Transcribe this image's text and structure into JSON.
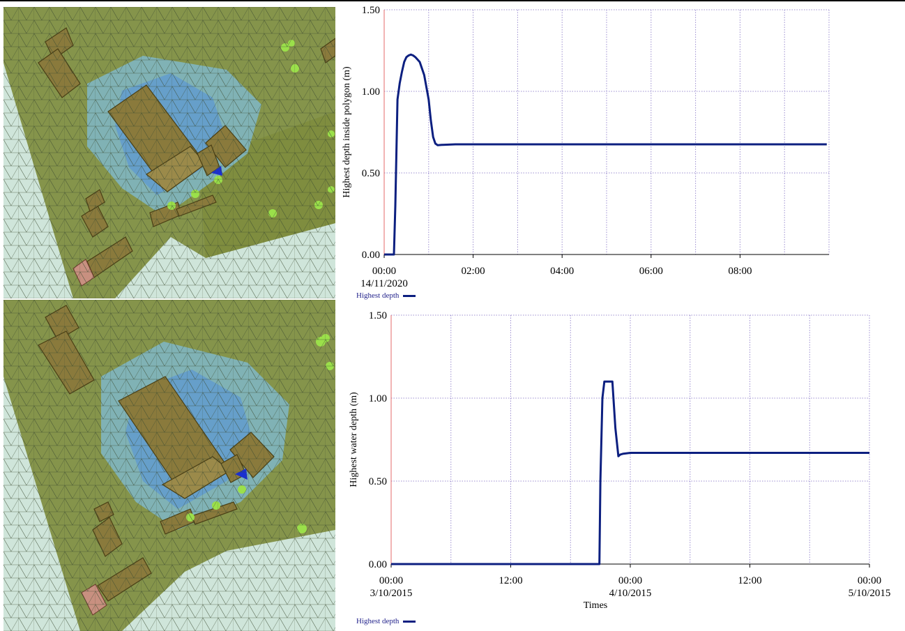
{
  "colors": {
    "line": "#0c1f80",
    "grid": "#9c8ed0",
    "axis": "#e46a6a",
    "text": "#000000",
    "legend_text": "#1f1f8a",
    "mesh_ground": "#c9e2d6",
    "mesh_green": "#7f8d3f",
    "water_shallow": "#7fb7c8",
    "water_deep": "#5f9ad0",
    "building": "#8a7a3c",
    "tree": "#9be04a"
  },
  "maps": {
    "top": {
      "description_icon": "flood-map-icon"
    },
    "bottom": {
      "description_icon": "flood-map-icon"
    }
  },
  "legend": {
    "top": "Highest depth",
    "bottom": "Highest depth"
  },
  "chart_data": [
    {
      "type": "line",
      "title": "",
      "ylabel": "Highest depth inside polygon (m)",
      "xlabel": "",
      "x_unit": "hours since 00:00 14/11/2020",
      "xlim": [
        0,
        10
      ],
      "ylim": [
        0,
        1.5
      ],
      "yticks": [
        0,
        0.5,
        1.0,
        1.5
      ],
      "ytick_labels": [
        "0.00",
        "0.50",
        "1.00",
        "1.50"
      ],
      "xticks": [
        0,
        2,
        4,
        6,
        8
      ],
      "xtick_labels": [
        "00:00",
        "02:00",
        "04:00",
        "06:00",
        "08:00"
      ],
      "xtick_sublabels": [
        "14/11/2020",
        "",
        "",
        "",
        ""
      ],
      "grid_x": [
        0,
        1,
        2,
        3,
        4,
        5,
        6,
        7,
        8,
        9,
        10
      ],
      "grid_y": [
        0.5,
        1.0,
        1.5
      ],
      "legend_position": "bottom-left",
      "series": [
        {
          "name": "Highest depth",
          "x": [
            0.0,
            0.22,
            0.25,
            0.3,
            0.35,
            0.4,
            0.45,
            0.5,
            0.55,
            0.6,
            0.65,
            0.7,
            0.8,
            0.9,
            1.0,
            1.05,
            1.1,
            1.15,
            1.2,
            1.3,
            1.6,
            2.0,
            4.0,
            6.0,
            8.0,
            9.95
          ],
          "y": [
            0.0,
            0.0,
            0.3,
            0.95,
            1.05,
            1.12,
            1.18,
            1.21,
            1.22,
            1.225,
            1.22,
            1.21,
            1.18,
            1.1,
            0.95,
            0.82,
            0.72,
            0.68,
            0.67,
            0.672,
            0.675,
            0.675,
            0.675,
            0.675,
            0.675,
            0.675
          ]
        }
      ]
    },
    {
      "type": "line",
      "title": "",
      "ylabel": "Highest water depth (m)",
      "xlabel": "Times",
      "x_unit": "hours since 00:00 3/10/2015",
      "xlim": [
        0,
        48
      ],
      "ylim": [
        0,
        1.5
      ],
      "yticks": [
        0,
        0.5,
        1.0,
        1.5
      ],
      "ytick_labels": [
        "0.00",
        "0.50",
        "1.00",
        "1.50"
      ],
      "xticks": [
        0,
        12,
        24,
        36,
        48
      ],
      "xtick_labels": [
        "00:00",
        "12:00",
        "00:00",
        "12:00",
        "00:00"
      ],
      "xtick_sublabels": [
        "3/10/2015",
        "",
        "4/10/2015",
        "",
        "5/10/2015"
      ],
      "grid_x": [
        0,
        6,
        12,
        18,
        24,
        30,
        36,
        42,
        48
      ],
      "grid_y": [
        0.5,
        1.0,
        1.5
      ],
      "legend_position": "bottom-left",
      "series": [
        {
          "name": "Highest depth",
          "x": [
            0.0,
            20.9,
            21.0,
            21.2,
            21.4,
            21.6,
            22.2,
            22.5,
            22.8,
            23.0,
            23.3,
            24.0,
            30.0,
            36.0,
            42.0,
            48.0
          ],
          "y": [
            0.0,
            0.0,
            0.5,
            1.0,
            1.1,
            1.1,
            1.1,
            0.82,
            0.65,
            0.66,
            0.665,
            0.67,
            0.67,
            0.67,
            0.67,
            0.67
          ]
        }
      ]
    }
  ]
}
